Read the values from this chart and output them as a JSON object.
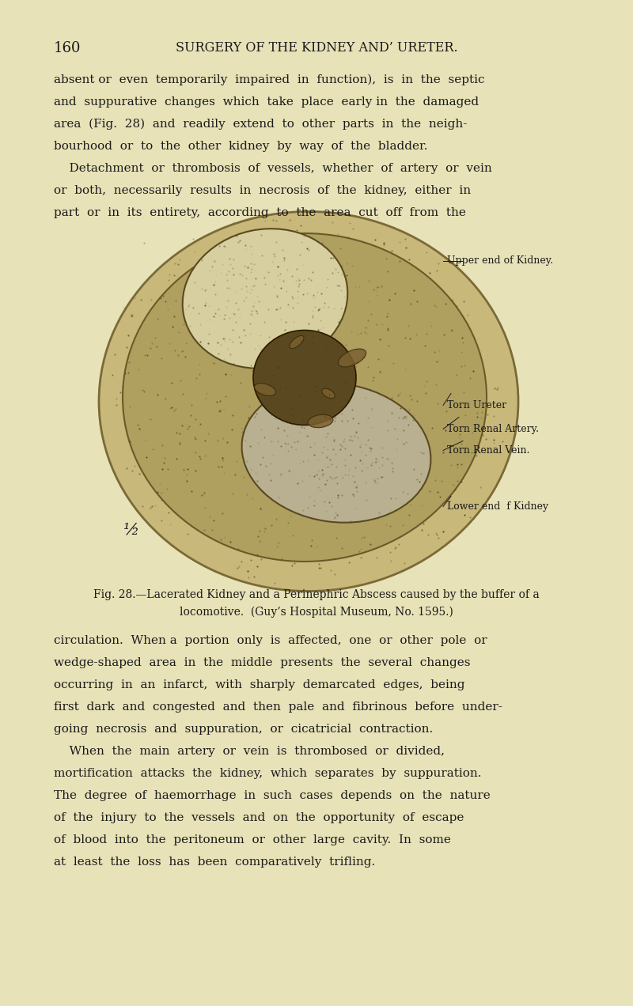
{
  "bg_color": "#e8e2b8",
  "page_number": "160",
  "header": "SURGERY OF THE KIDNEY AND’ URETER.",
  "text_color": "#1a1a1a",
  "body_text_lines": [
    "absent or  even  temporarily  impaired  in  function),  is  in  the  septic",
    "and  suppurative  changes  which  take  place  early in  the  damaged",
    "area  (Fig.  28)  and  readily  extend  to  other  parts  in  the  neigh-",
    "bourhood  or  to  the  other  kidney  by  way  of  the  bladder.",
    "    Detachment  or  thrombosis  of  vessels,  whether  of  artery  or  vein",
    "or  both,  necessarily  results  in  necrosis  of  the  kidney,  either  in",
    "part  or  in  its  entirety,  according  to  the  area  cut  off  from  the"
  ],
  "caption_line1": "Fig. 28.—Lacerated Kidney and a Perinephric Abscess caused by the buffer of a",
  "caption_line2": "locomotive.  (Guy’s Hospital Museum, No. 1595.)",
  "body_text2_lines": [
    "circulation.  When a  portion  only  is  affected,  one  or  other  pole  or",
    "wedge-shaped  area  in  the  middle  presents  the  several  changes",
    "occurring  in  an  infarct,  with  sharply  demarcated  edges,  being",
    "first  dark  and  congested  and  then  pale  and  fibrinous  before  under-",
    "going  necrosis  and  suppuration,  or  cicatricial  contraction.",
    "    When  the  main  artery  or  vein  is  thrombosed  or  divided,",
    "mortification  attacks  the  kidney,  which  separates  by  suppuration.",
    "The  degree  of  haemorrhage  in  such  cases  depends  on  the  nature",
    "of  the  injury  to  the  vessels  and  on  the  opportunity  of  escape",
    "of  blood  into  the  peritoneum  or  other  large  cavity.  In  some",
    "at  least  the  loss  has  been  comparatively  trifling."
  ],
  "label_upper_end": "Upper end of Kidney.",
  "label_torn_ureter": "Torn Ureter",
  "label_torn_artery": "Torn Renal Artery.",
  "label_torn_vein": "Torn Renal Vein.",
  "label_lower_end": "Lower end  f Kidney",
  "label_scale": "½"
}
